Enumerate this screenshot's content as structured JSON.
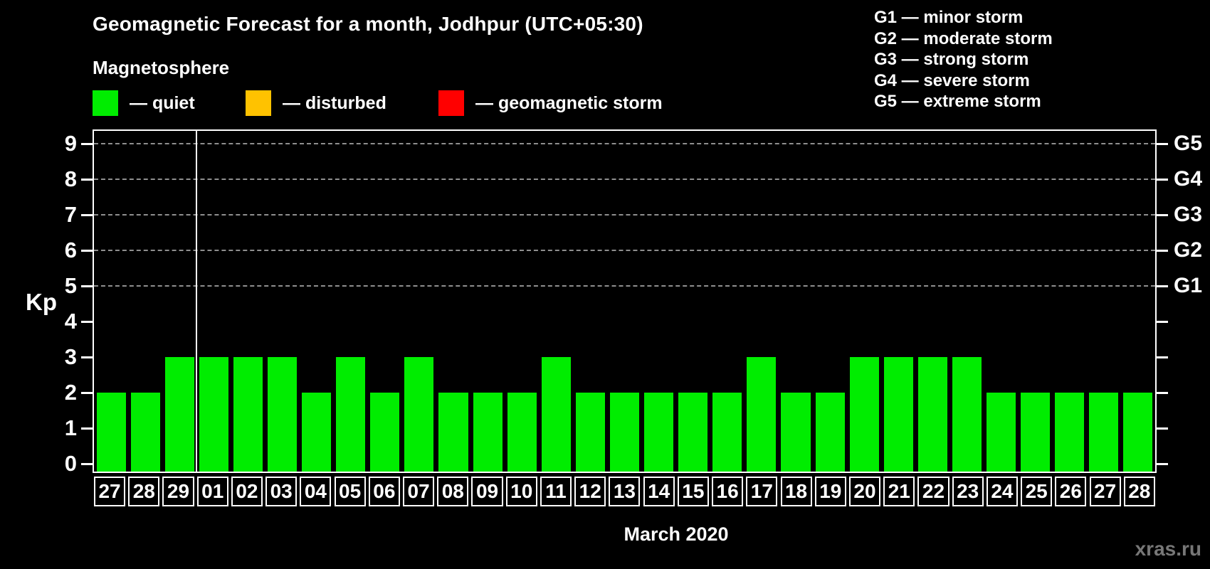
{
  "header": {
    "title": "Geomagnetic Forecast for a month, Jodhpur (UTC+05:30)",
    "subtitle": "Magnetosphere",
    "legend": [
      {
        "name": "quiet",
        "label": "— quiet",
        "color": "#00ed00"
      },
      {
        "name": "disturbed",
        "label": "— disturbed",
        "color": "#ffc200"
      },
      {
        "name": "geomagnetic-storm",
        "label": "— geomagnetic storm",
        "color": "#ff0000"
      }
    ],
    "g_legend": [
      "G1 — minor storm",
      "G2 — moderate storm",
      "G3 — strong storm",
      "G4 — severe storm",
      "G5 — extreme storm"
    ]
  },
  "chart_data": {
    "type": "bar",
    "title": "Geomagnetic Forecast for a month, Jodhpur (UTC+05:30)",
    "ylabel": "Kp",
    "xlabel": "March 2020",
    "ylim": [
      0,
      9
    ],
    "yticks": [
      0,
      1,
      2,
      3,
      4,
      5,
      6,
      7,
      8,
      9
    ],
    "grid": "dashed horizontal lines at Kp 5-9 only",
    "gridlines_at_kp": [
      5,
      6,
      7,
      8,
      9
    ],
    "right_axis": [
      {
        "kp": 5,
        "label": "G1"
      },
      {
        "kp": 6,
        "label": "G2"
      },
      {
        "kp": 7,
        "label": "G3"
      },
      {
        "kp": 8,
        "label": "G4"
      },
      {
        "kp": 9,
        "label": "G5"
      }
    ],
    "categories": [
      "27",
      "28",
      "29",
      "01",
      "02",
      "03",
      "04",
      "05",
      "06",
      "07",
      "08",
      "09",
      "10",
      "11",
      "12",
      "13",
      "14",
      "15",
      "16",
      "17",
      "18",
      "19",
      "20",
      "21",
      "22",
      "23",
      "24",
      "25",
      "26",
      "27",
      "28"
    ],
    "values": [
      2,
      2,
      3,
      3,
      3,
      3,
      2,
      3,
      2,
      3,
      2,
      2,
      2,
      3,
      2,
      2,
      2,
      2,
      2,
      3,
      2,
      2,
      3,
      3,
      3,
      3,
      2,
      2,
      2,
      2,
      2
    ],
    "bar_color": "#00ed00",
    "bar_status": "quiet",
    "month_separator_after_index": 2,
    "legend_position": "top-left above plot"
  },
  "footer": {
    "xaxis_title": "March 2020",
    "watermark": "xras.ru"
  }
}
